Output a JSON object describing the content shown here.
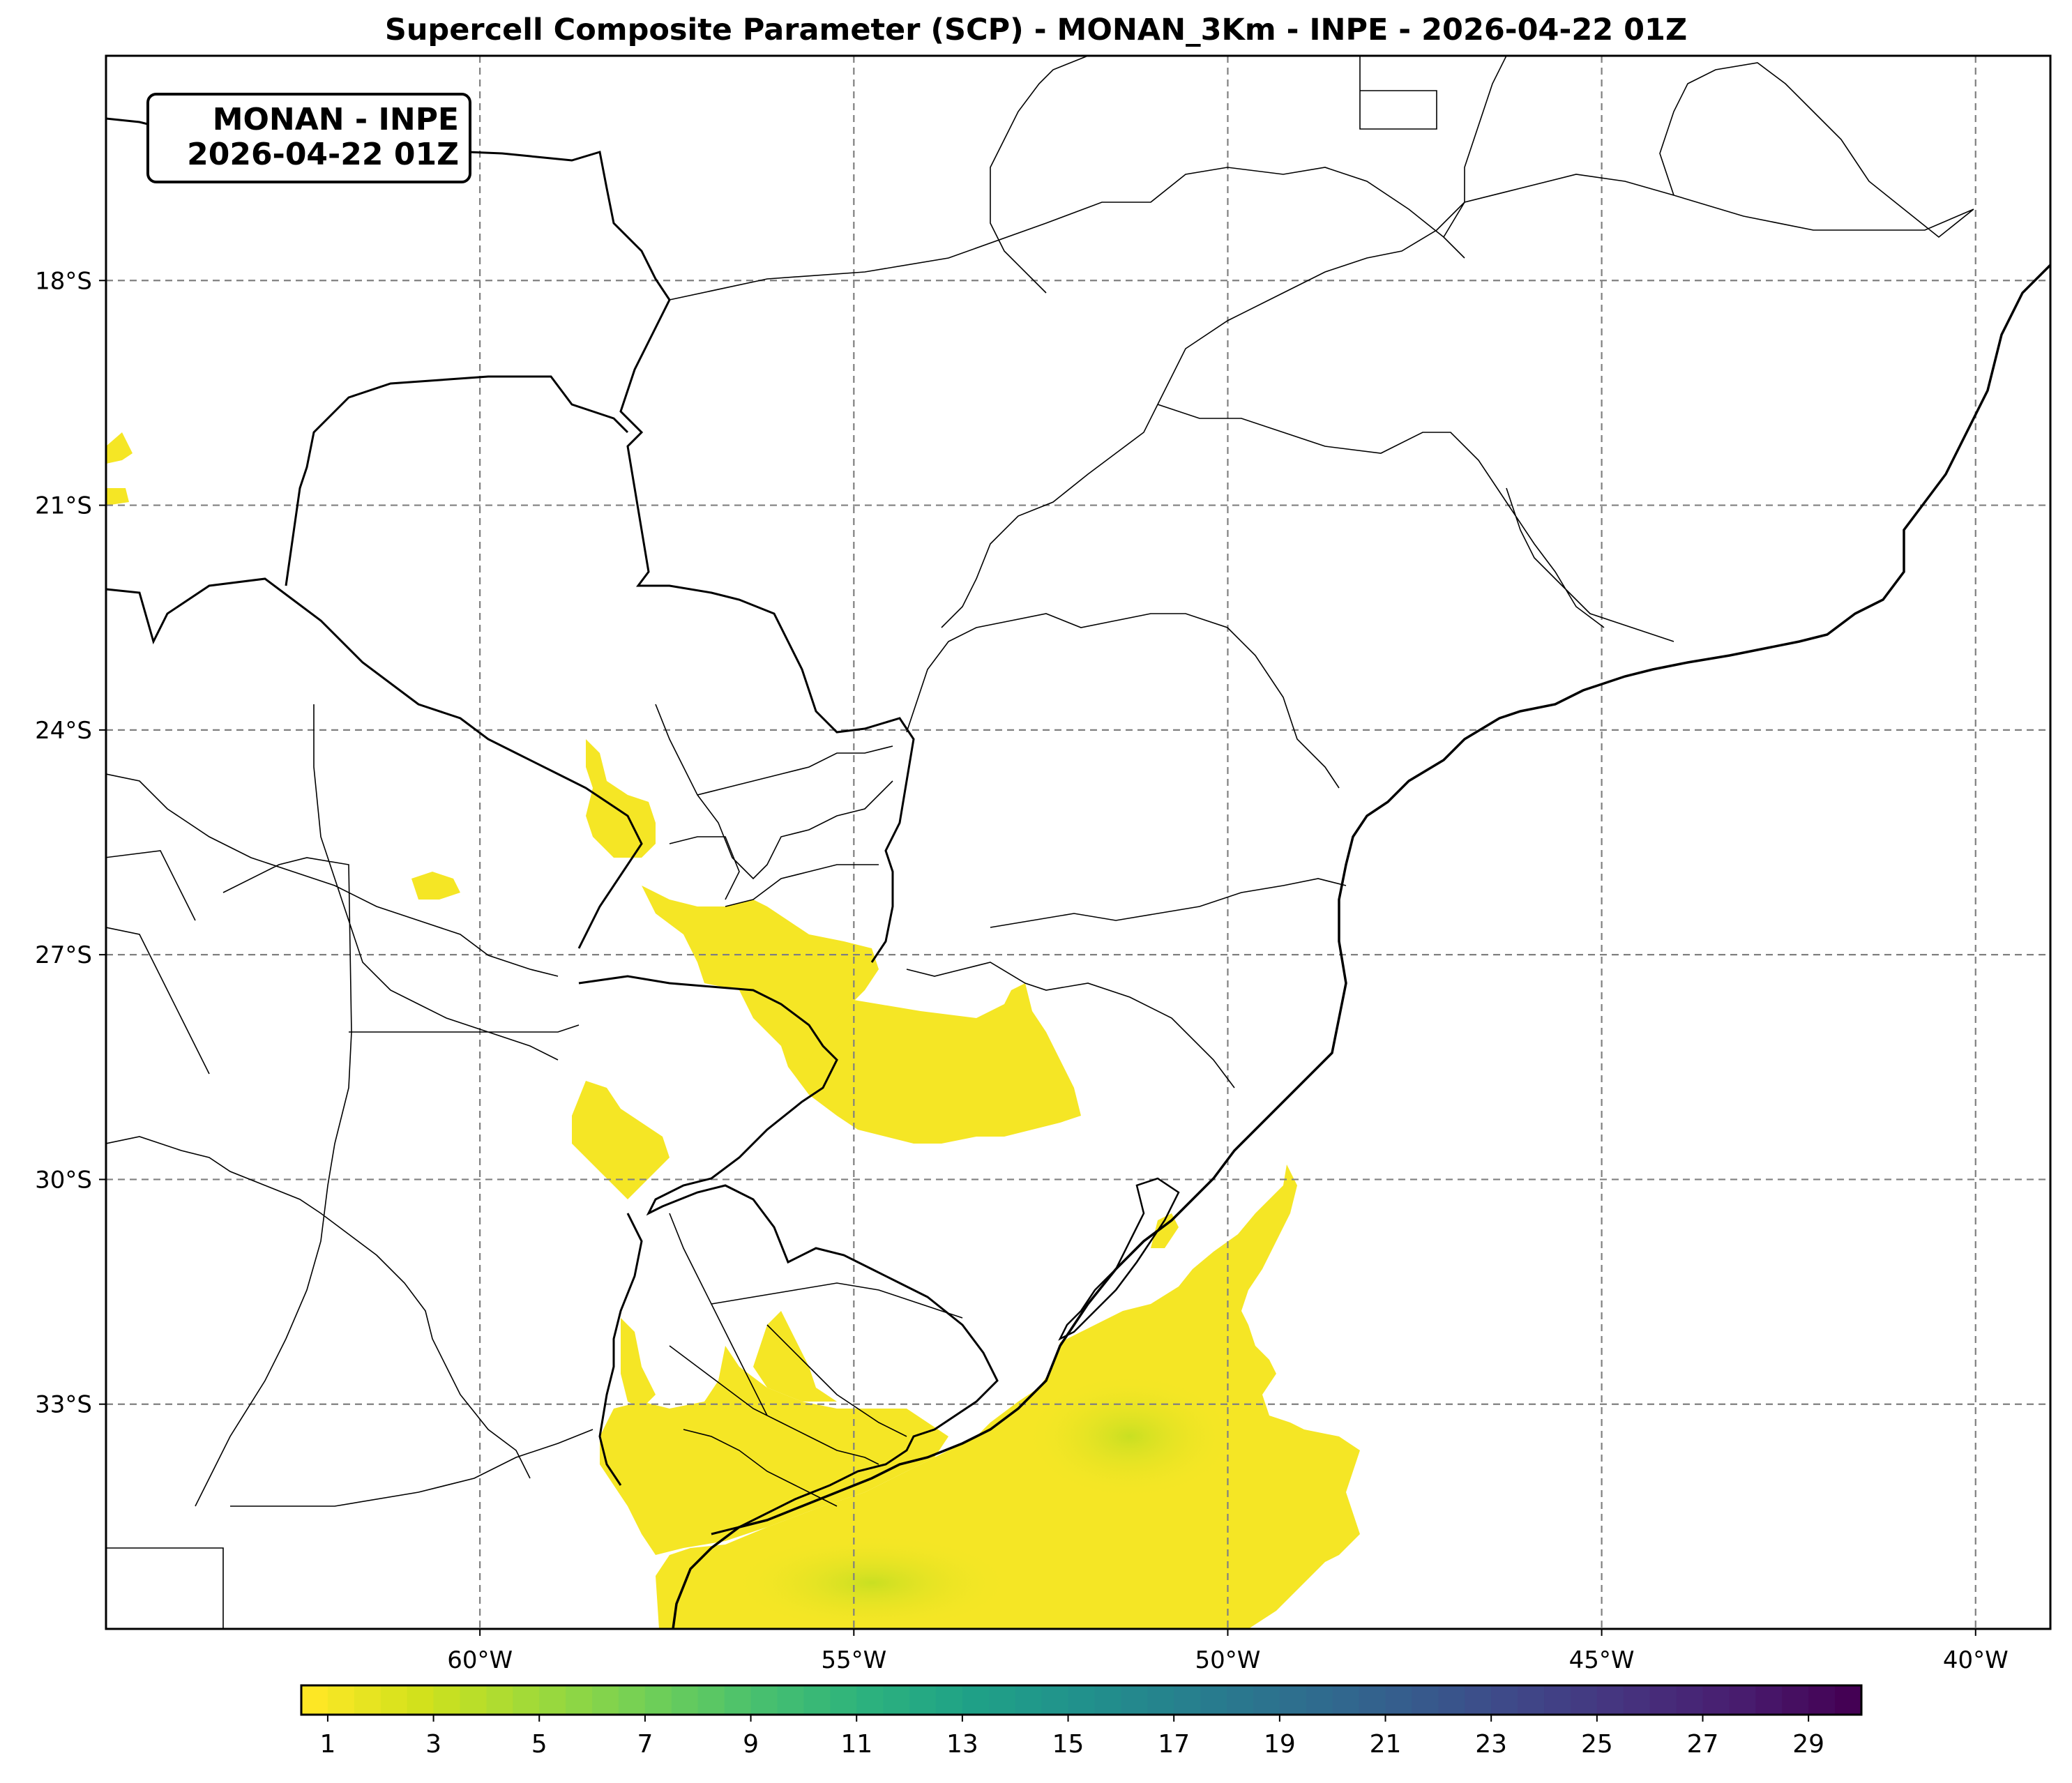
{
  "title": "Supercell Composite Parameter (SCP) - MONAN_3Km - INPE - 2026-04-22 01Z",
  "info_box": {
    "line1": "MONAN - INPE",
    "line2": "2026-04-22 01Z"
  },
  "map": {
    "lon_range": [
      -65.0,
      -39.0
    ],
    "lat_range": [
      -36.0,
      -15.0
    ],
    "longitude_ticks": [
      {
        "value": -60,
        "label": "60°W"
      },
      {
        "value": -55,
        "label": "55°W"
      },
      {
        "value": -50,
        "label": "50°W"
      },
      {
        "value": -45,
        "label": "45°W"
      },
      {
        "value": -40,
        "label": "40°W"
      }
    ],
    "latitude_ticks": [
      {
        "value": -18,
        "label": "18°S"
      },
      {
        "value": -21,
        "label": "21°S"
      },
      {
        "value": -24,
        "label": "24°S"
      },
      {
        "value": -27,
        "label": "27°S"
      },
      {
        "value": -30,
        "label": "30°S"
      },
      {
        "value": -33,
        "label": "33°S"
      }
    ],
    "gridlines": "dashed",
    "field": "SCP",
    "shaded_regions": [
      {
        "name": "southern-coast-ocean",
        "level": "1-3",
        "core_max": 3
      },
      {
        "name": "uruguay-south",
        "level": "1-3"
      },
      {
        "name": "rio-grande-do-sul-north",
        "level": "1-2"
      },
      {
        "name": "misiones-santa-catarina-border",
        "level": "1-2"
      },
      {
        "name": "paraguay-east",
        "level": "1-2"
      },
      {
        "name": "corrientes",
        "level": "1-2"
      },
      {
        "name": "bolivia-west-edge",
        "level": "1"
      }
    ]
  },
  "colorbar": {
    "colormap": "viridis (reversed)",
    "range": [
      0.5,
      30
    ],
    "ticks": [
      "1",
      "3",
      "5",
      "7",
      "9",
      "11",
      "13",
      "15",
      "17",
      "19",
      "21",
      "23",
      "25",
      "27",
      "29"
    ],
    "colors": [
      "#fde725",
      "#d0e11c",
      "#a0da39",
      "#73d056",
      "#4ac16d",
      "#2db27d",
      "#1fa187",
      "#21918c",
      "#277f8e",
      "#2e6e8e",
      "#365c8d",
      "#3f4788",
      "#46327e",
      "#481d6f",
      "#440154"
    ]
  },
  "style": {
    "shade_color": "#f5e625",
    "shade_core": "#d7e21f",
    "border_color": "#000000",
    "grid_color": "#808080"
  }
}
